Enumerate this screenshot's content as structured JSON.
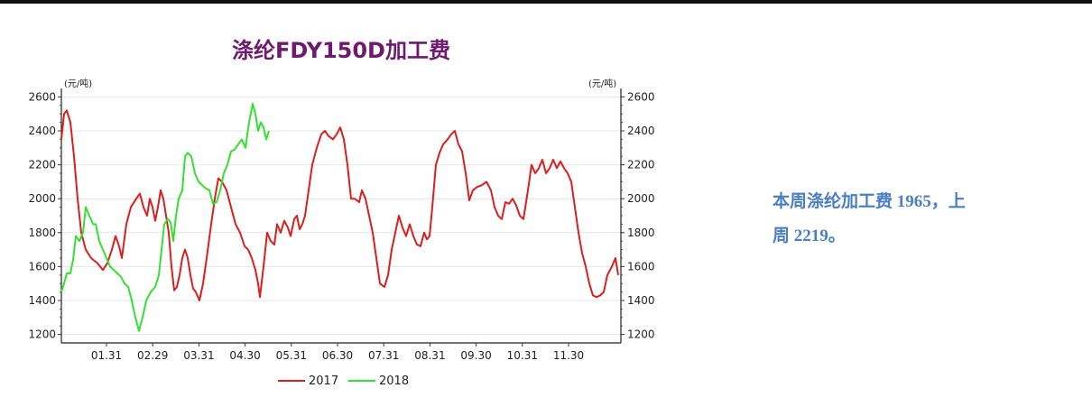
{
  "colors": {
    "s2017": "#d91f1f",
    "s2018": "#33e033",
    "title": "#6e1a6e",
    "note": "#4a7ec4"
  },
  "chart_data": {
    "type": "line",
    "title": "涤纶FDY150D加工费",
    "unit_left": "(元/吨)",
    "unit_right": "(元/吨)",
    "ylim": [
      1150,
      2650
    ],
    "yticks": [
      1200,
      1400,
      1600,
      1800,
      2000,
      2200,
      2400,
      2600
    ],
    "xticks": [
      "01.31",
      "02.29",
      "03.31",
      "04.30",
      "05.31",
      "06.30",
      "07.31",
      "08.31",
      "09.30",
      "10.31",
      "11.30"
    ],
    "grid": true,
    "legend": "bottom",
    "series": [
      {
        "name": "2017",
        "points": [
          [
            0,
            2350
          ],
          [
            3,
            2500
          ],
          [
            6,
            2520
          ],
          [
            10,
            2450
          ],
          [
            14,
            2250
          ],
          [
            18,
            2000
          ],
          [
            22,
            1800
          ],
          [
            27,
            1700
          ],
          [
            33,
            1650
          ],
          [
            40,
            1620
          ],
          [
            46,
            1580
          ],
          [
            51,
            1620
          ],
          [
            56,
            1700
          ],
          [
            60,
            1780
          ],
          [
            64,
            1720
          ],
          [
            67,
            1650
          ],
          [
            72,
            1850
          ],
          [
            77,
            1950
          ],
          [
            83,
            2000
          ],
          [
            87,
            2030
          ],
          [
            91,
            1950
          ],
          [
            95,
            1900
          ],
          [
            98,
            2000
          ],
          [
            101,
            1950
          ],
          [
            104,
            1870
          ],
          [
            107,
            1950
          ],
          [
            110,
            2050
          ],
          [
            113,
            2000
          ],
          [
            116,
            1900
          ],
          [
            119,
            1800
          ],
          [
            122,
            1600
          ],
          [
            125,
            1460
          ],
          [
            128,
            1480
          ],
          [
            131,
            1550
          ],
          [
            134,
            1650
          ],
          [
            137,
            1700
          ],
          [
            140,
            1650
          ],
          [
            143,
            1550
          ],
          [
            146,
            1470
          ],
          [
            149,
            1450
          ],
          [
            153,
            1400
          ],
          [
            157,
            1500
          ],
          [
            161,
            1650
          ],
          [
            166,
            1850
          ],
          [
            170,
            2000
          ],
          [
            174,
            2120
          ],
          [
            178,
            2100
          ],
          [
            183,
            2050
          ],
          [
            188,
            1950
          ],
          [
            193,
            1850
          ],
          [
            198,
            1800
          ],
          [
            203,
            1720
          ],
          [
            207,
            1700
          ],
          [
            211,
            1650
          ],
          [
            215,
            1580
          ],
          [
            218,
            1500
          ],
          [
            220,
            1420
          ],
          [
            224,
            1600
          ],
          [
            228,
            1800
          ],
          [
            232,
            1750
          ],
          [
            236,
            1730
          ],
          [
            239,
            1850
          ],
          [
            243,
            1800
          ],
          [
            247,
            1870
          ],
          [
            251,
            1830
          ],
          [
            254,
            1780
          ],
          [
            258,
            1880
          ],
          [
            261,
            1900
          ],
          [
            264,
            1820
          ],
          [
            267,
            1850
          ],
          [
            270,
            1900
          ],
          [
            274,
            2050
          ],
          [
            278,
            2200
          ],
          [
            283,
            2300
          ],
          [
            288,
            2380
          ],
          [
            292,
            2400
          ],
          [
            296,
            2370
          ],
          [
            301,
            2350
          ],
          [
            305,
            2380
          ],
          [
            309,
            2420
          ],
          [
            313,
            2350
          ],
          [
            317,
            2200
          ],
          [
            321,
            2000
          ],
          [
            325,
            2000
          ],
          [
            330,
            1980
          ],
          [
            333,
            2050
          ],
          [
            337,
            2000
          ],
          [
            341,
            1900
          ],
          [
            345,
            1800
          ],
          [
            349,
            1650
          ],
          [
            353,
            1500
          ],
          [
            358,
            1480
          ],
          [
            362,
            1550
          ],
          [
            366,
            1700
          ],
          [
            370,
            1800
          ],
          [
            374,
            1900
          ],
          [
            378,
            1830
          ],
          [
            382,
            1780
          ],
          [
            386,
            1850
          ],
          [
            390,
            1780
          ],
          [
            394,
            1730
          ],
          [
            398,
            1720
          ],
          [
            402,
            1800
          ],
          [
            405,
            1760
          ],
          [
            408,
            1780
          ],
          [
            411,
            1950
          ],
          [
            415,
            2200
          ],
          [
            419,
            2270
          ],
          [
            423,
            2320
          ],
          [
            428,
            2350
          ],
          [
            432,
            2380
          ],
          [
            436,
            2400
          ],
          [
            440,
            2320
          ],
          [
            444,
            2280
          ],
          [
            448,
            2150
          ],
          [
            452,
            1990
          ],
          [
            456,
            2050
          ],
          [
            461,
            2070
          ],
          [
            466,
            2080
          ],
          [
            471,
            2100
          ],
          [
            476,
            2050
          ],
          [
            480,
            1950
          ],
          [
            484,
            1900
          ],
          [
            488,
            1880
          ],
          [
            492,
            1980
          ],
          [
            496,
            1970
          ],
          [
            500,
            2000
          ],
          [
            504,
            1960
          ],
          [
            508,
            1900
          ],
          [
            512,
            1880
          ],
          [
            517,
            2050
          ],
          [
            521,
            2200
          ],
          [
            525,
            2150
          ],
          [
            529,
            2180
          ],
          [
            533,
            2230
          ],
          [
            537,
            2150
          ],
          [
            541,
            2180
          ],
          [
            545,
            2230
          ],
          [
            549,
            2180
          ],
          [
            553,
            2220
          ],
          [
            557,
            2180
          ],
          [
            561,
            2150
          ],
          [
            565,
            2100
          ],
          [
            569,
            1950
          ],
          [
            573,
            1800
          ],
          [
            577,
            1680
          ],
          [
            581,
            1600
          ],
          [
            585,
            1500
          ],
          [
            589,
            1430
          ],
          [
            593,
            1420
          ],
          [
            597,
            1430
          ],
          [
            601,
            1450
          ],
          [
            605,
            1550
          ],
          [
            610,
            1600
          ],
          [
            614,
            1650
          ],
          [
            617,
            1550
          ]
        ]
      },
      {
        "name": "2018",
        "points": [
          [
            0,
            1450
          ],
          [
            3,
            1500
          ],
          [
            6,
            1560
          ],
          [
            10,
            1560
          ],
          [
            13,
            1640
          ],
          [
            16,
            1780
          ],
          [
            20,
            1750
          ],
          [
            24,
            1800
          ],
          [
            27,
            1950
          ],
          [
            31,
            1900
          ],
          [
            35,
            1850
          ],
          [
            38,
            1850
          ],
          [
            42,
            1750
          ],
          [
            46,
            1700
          ],
          [
            50,
            1650
          ],
          [
            54,
            1600
          ],
          [
            58,
            1580
          ],
          [
            62,
            1560
          ],
          [
            66,
            1540
          ],
          [
            70,
            1500
          ],
          [
            74,
            1480
          ],
          [
            78,
            1400
          ],
          [
            82,
            1300
          ],
          [
            86,
            1220
          ],
          [
            90,
            1300
          ],
          [
            94,
            1400
          ],
          [
            99,
            1450
          ],
          [
            104,
            1480
          ],
          [
            108,
            1550
          ],
          [
            111,
            1700
          ],
          [
            114,
            1850
          ],
          [
            118,
            1880
          ],
          [
            121,
            1860
          ],
          [
            124,
            1750
          ],
          [
            127,
            1900
          ],
          [
            130,
            2000
          ],
          [
            134,
            2050
          ],
          [
            137,
            2250
          ],
          [
            140,
            2270
          ],
          [
            144,
            2250
          ],
          [
            148,
            2150
          ],
          [
            152,
            2100
          ],
          [
            156,
            2080
          ],
          [
            160,
            2060
          ],
          [
            164,
            2050
          ],
          [
            168,
            1970
          ],
          [
            172,
            1980
          ],
          [
            176,
            2050
          ],
          [
            180,
            2150
          ],
          [
            184,
            2200
          ],
          [
            188,
            2280
          ],
          [
            192,
            2290
          ],
          [
            196,
            2320
          ],
          [
            200,
            2350
          ],
          [
            204,
            2300
          ],
          [
            208,
            2450
          ],
          [
            212,
            2560
          ],
          [
            215,
            2500
          ],
          [
            218,
            2400
          ],
          [
            221,
            2450
          ],
          [
            224,
            2420
          ],
          [
            227,
            2350
          ],
          [
            230,
            2400
          ]
        ]
      }
    ]
  },
  "note": {
    "line1": "本周涤纶加工费 1965，上",
    "line2": "周 2219。"
  }
}
